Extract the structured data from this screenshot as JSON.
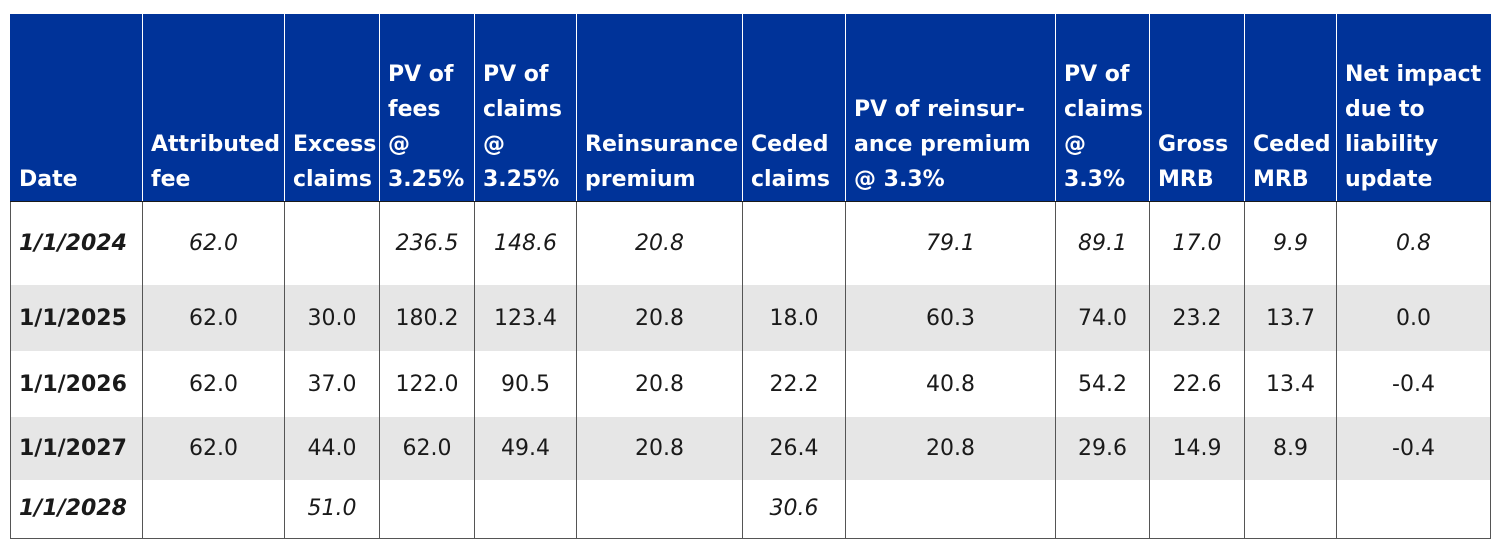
{
  "table": {
    "headers": [
      "Date",
      "Attributed\nfee",
      "Excess\nclaims",
      "PV of\nfees\n@\n3.25%",
      "PV of\nclaims\n@\n3.25%",
      "Reinsurance\npremium",
      "Ceded\nclaims",
      "PV of reinsur-\nance premium\n@ 3.3%",
      "PV of\nclaims\n@\n3.3%",
      "Gross\nMRB",
      "Ceded\nMRB",
      "Net impact\ndue to\nliability\nupdate"
    ],
    "rows": [
      [
        "1/1/2024",
        "62.0",
        "",
        "236.5",
        "148.6",
        "20.8",
        "",
        "79.1",
        "89.1",
        "17.0",
        "9.9",
        "0.8"
      ],
      [
        "1/1/2025",
        "62.0",
        "30.0",
        "180.2",
        "123.4",
        "20.8",
        "18.0",
        "60.3",
        "74.0",
        "23.2",
        "13.7",
        "0.0"
      ],
      [
        "1/1/2026",
        "62.0",
        "37.0",
        "122.0",
        "90.5",
        "20.8",
        "22.2",
        "40.8",
        "54.2",
        "22.6",
        "13.4",
        "-0.4"
      ],
      [
        "1/1/2027",
        "62.0",
        "44.0",
        "62.0",
        "49.4",
        "20.8",
        "26.4",
        "20.8",
        "29.6",
        "14.9",
        "8.9",
        "-0.4"
      ],
      [
        "1/1/2028",
        "",
        "51.0",
        "",
        "",
        "",
        "30.6",
        "",
        "",
        "",
        "",
        ""
      ]
    ]
  },
  "colors": {
    "header_bg": "#003399",
    "header_text": "#ffffff",
    "row_shade": "#e6e6e6",
    "row_plain": "#ffffff"
  }
}
